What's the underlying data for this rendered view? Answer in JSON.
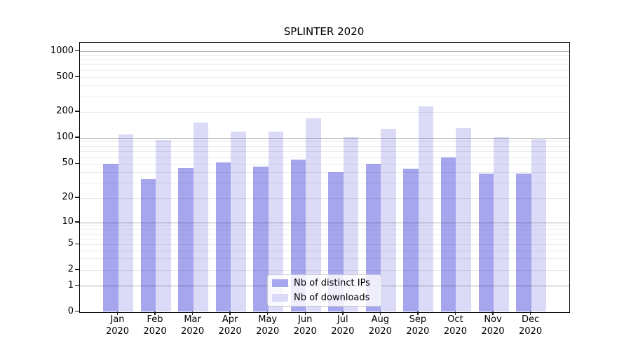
{
  "chart_data": {
    "type": "bar",
    "title": "SPLINTER 2020",
    "categories": [
      {
        "month": "Jan",
        "year": "2020"
      },
      {
        "month": "Feb",
        "year": "2020"
      },
      {
        "month": "Mar",
        "year": "2020"
      },
      {
        "month": "Apr",
        "year": "2020"
      },
      {
        "month": "May",
        "year": "2020"
      },
      {
        "month": "Jun",
        "year": "2020"
      },
      {
        "month": "Jul",
        "year": "2020"
      },
      {
        "month": "Aug",
        "year": "2020"
      },
      {
        "month": "Sep",
        "year": "2020"
      },
      {
        "month": "Oct",
        "year": "2020"
      },
      {
        "month": "Nov",
        "year": "2020"
      },
      {
        "month": "Dec",
        "year": "2020"
      }
    ],
    "series": [
      {
        "name": "Nb of distinct IPs",
        "color": "#a6a6ee",
        "values": [
          50,
          33,
          45,
          52,
          47,
          56,
          40,
          50,
          44,
          59,
          39,
          39
        ]
      },
      {
        "name": "Nb of downloads",
        "color": "#dbdbf8",
        "values": [
          110,
          95,
          151,
          118,
          118,
          170,
          101,
          128,
          230,
          130,
          102,
          97
        ]
      }
    ],
    "yticks": [
      0,
      1,
      2,
      5,
      10,
      20,
      50,
      100,
      200,
      500,
      1000
    ],
    "ylim": [
      0,
      1300
    ],
    "scale": "log-like with zero baseline",
    "grid": "horizontal, major and minor, drawn over bars",
    "legend_position": "lower center",
    "colors": {
      "major_grid": "#b3b3b3",
      "minor_grid": "#ebebeb",
      "axis": "#000000",
      "text": "#000000"
    }
  }
}
